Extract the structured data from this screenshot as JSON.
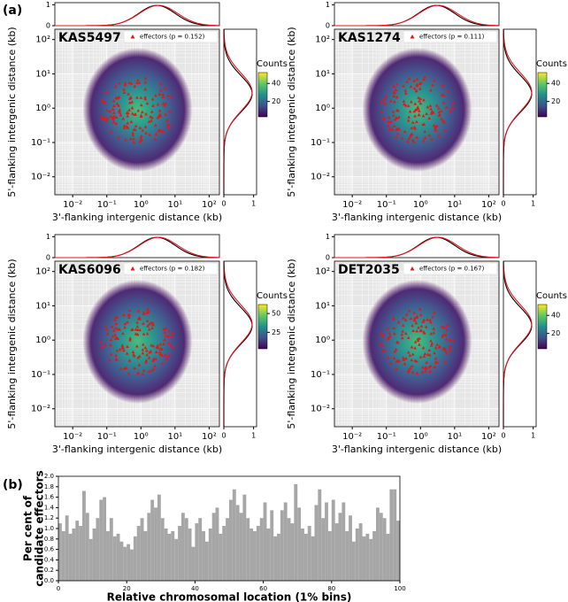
{
  "panel_labels": [
    "(a)",
    "(b)"
  ],
  "chart_data": [
    {
      "type": "hexbin",
      "title": "KAS5497",
      "legend": "effectors (p = 0.152)",
      "legend_color": "#e8141c",
      "xlabel": "3'-flanking intergenic distance (kb)",
      "ylabel": "5'-flanking intergenic distance (kb)",
      "log_scale": true,
      "grid": true,
      "xlim": [
        0.003,
        200
      ],
      "ylim": [
        0.003,
        200
      ],
      "xticks": [
        {
          "value": 0.01,
          "label": "10⁻²"
        },
        {
          "value": 0.1,
          "label": "10⁻¹"
        },
        {
          "value": 1,
          "label": "10⁰"
        },
        {
          "value": 10,
          "label": "10¹"
        },
        {
          "value": 100,
          "label": "10²"
        }
      ],
      "yticks": [
        {
          "value": 0.01,
          "label": "10⁻²"
        },
        {
          "value": 0.1,
          "label": "10⁻¹"
        },
        {
          "value": 1,
          "label": "10⁰"
        },
        {
          "value": 10,
          "label": "10¹"
        },
        {
          "value": 100,
          "label": "10²"
        }
      ],
      "marginal_lim": [
        0,
        1.1
      ],
      "marginal_ticks": [
        0,
        1
      ],
      "colorbar": {
        "label": "Counts",
        "lim": [
          3,
          52
        ],
        "ticks": [
          20,
          40
        ]
      }
    },
    {
      "type": "hexbin",
      "title": "KAS1274",
      "legend": "effectors (p = 0.111)",
      "legend_color": "#e8141c",
      "xlabel": "3'-flanking intergenic distance (kb)",
      "ylabel": "5'-flanking intergenic distance (kb)",
      "log_scale": true,
      "grid": true,
      "xlim": [
        0.003,
        200
      ],
      "ylim": [
        0.003,
        200
      ],
      "xticks": [
        {
          "value": 0.01,
          "label": "10⁻²"
        },
        {
          "value": 0.1,
          "label": "10⁻¹"
        },
        {
          "value": 1,
          "label": "10⁰"
        },
        {
          "value": 10,
          "label": "10¹"
        },
        {
          "value": 100,
          "label": "10²"
        }
      ],
      "yticks": [
        {
          "value": 0.01,
          "label": "10⁻²"
        },
        {
          "value": 0.1,
          "label": "10⁻¹"
        },
        {
          "value": 1,
          "label": "10⁰"
        },
        {
          "value": 10,
          "label": "10¹"
        },
        {
          "value": 100,
          "label": "10²"
        }
      ],
      "marginal_lim": [
        0,
        1.1
      ],
      "marginal_ticks": [
        0,
        1
      ],
      "colorbar": {
        "label": "Counts",
        "lim": [
          3,
          52
        ],
        "ticks": [
          20,
          40
        ]
      }
    },
    {
      "type": "hexbin",
      "title": "KAS6096",
      "legend": "effectors (p = 0.182)",
      "legend_color": "#e8141c",
      "xlabel": "3'-flanking intergenic distance (kb)",
      "ylabel": "5'-flanking intergenic distance (kb)",
      "log_scale": true,
      "grid": true,
      "xlim": [
        0.003,
        200
      ],
      "ylim": [
        0.003,
        200
      ],
      "xticks": [
        {
          "value": 0.01,
          "label": "10⁻²"
        },
        {
          "value": 0.1,
          "label": "10⁻¹"
        },
        {
          "value": 1,
          "label": "10⁰"
        },
        {
          "value": 10,
          "label": "10¹"
        },
        {
          "value": 100,
          "label": "10²"
        }
      ],
      "yticks": [
        {
          "value": 0.01,
          "label": "10⁻²"
        },
        {
          "value": 0.1,
          "label": "10⁻¹"
        },
        {
          "value": 1,
          "label": "10⁰"
        },
        {
          "value": 10,
          "label": "10¹"
        },
        {
          "value": 100,
          "label": "10²"
        }
      ],
      "marginal_lim": [
        0,
        1.1
      ],
      "marginal_ticks": [
        0,
        1
      ],
      "colorbar": {
        "label": "Counts",
        "lim": [
          3,
          62
        ],
        "ticks": [
          25,
          50
        ]
      }
    },
    {
      "type": "hexbin",
      "title": "DET2035",
      "legend": "effectors (p = 0.167)",
      "legend_color": "#e8141c",
      "xlabel": "3'-flanking intergenic distance (kb)",
      "ylabel": "5'-flanking intergenic distance (kb)",
      "log_scale": true,
      "grid": true,
      "xlim": [
        0.003,
        200
      ],
      "ylim": [
        0.003,
        200
      ],
      "xticks": [
        {
          "value": 0.01,
          "label": "10⁻²"
        },
        {
          "value": 0.1,
          "label": "10⁻¹"
        },
        {
          "value": 1,
          "label": "10⁰"
        },
        {
          "value": 10,
          "label": "10¹"
        },
        {
          "value": 100,
          "label": "10²"
        }
      ],
      "yticks": [
        {
          "value": 0.01,
          "label": "10⁻²"
        },
        {
          "value": 0.1,
          "label": "10⁻¹"
        },
        {
          "value": 1,
          "label": "10⁰"
        },
        {
          "value": 10,
          "label": "10¹"
        },
        {
          "value": 100,
          "label": "10²"
        }
      ],
      "marginal_lim": [
        0,
        1.1
      ],
      "marginal_ticks": [
        0,
        1
      ],
      "colorbar": {
        "label": "Counts",
        "lim": [
          3,
          52
        ],
        "ticks": [
          20,
          40
        ]
      }
    },
    {
      "type": "histogram",
      "xlabel": "Relative chromosomal location (1% bins)",
      "ylabel": [
        "Per cent of",
        "candidate effectors"
      ],
      "color": "#a6a6a6",
      "xlim": [
        0,
        100
      ],
      "xticks": [
        0,
        20,
        40,
        60,
        80,
        100
      ],
      "ylim": [
        0,
        2.0
      ],
      "yticks": [
        {
          "value": 0,
          "label": "0.0"
        },
        0.2,
        0.4,
        0.6,
        0.8,
        {
          "value": 1,
          "label": "1.0"
        },
        1.2,
        1.4,
        1.6,
        1.8,
        {
          "value": 2,
          "label": "2.0"
        }
      ],
      "bins": [
        0,
        1,
        2,
        3,
        4,
        5,
        6,
        7,
        8,
        9,
        10,
        11,
        12,
        13,
        14,
        15,
        16,
        17,
        18,
        19,
        20,
        21,
        22,
        23,
        24,
        25,
        26,
        27,
        28,
        29,
        30,
        31,
        32,
        33,
        34,
        35,
        36,
        37,
        38,
        39,
        40,
        41,
        42,
        43,
        44,
        45,
        46,
        47,
        48,
        49,
        50,
        51,
        52,
        53,
        54,
        55,
        56,
        57,
        58,
        59,
        60,
        61,
        62,
        63,
        64,
        65,
        66,
        67,
        68,
        69,
        70,
        71,
        72,
        73,
        74,
        75,
        76,
        77,
        78,
        79,
        80,
        81,
        82,
        83,
        84,
        85,
        86,
        87,
        88,
        89,
        90,
        91,
        92,
        93,
        94,
        95,
        96,
        97,
        98,
        99,
        100
      ],
      "values": [
        1.1,
        0.95,
        1.25,
        0.9,
        1.0,
        1.15,
        1.05,
        1.72,
        1.3,
        0.8,
        1.0,
        1.2,
        1.55,
        1.6,
        0.95,
        1.2,
        0.85,
        0.9,
        0.75,
        0.65,
        0.7,
        0.6,
        0.85,
        1.05,
        1.2,
        0.95,
        1.3,
        1.55,
        1.4,
        1.65,
        1.2,
        1.0,
        0.9,
        0.95,
        0.8,
        1.05,
        1.3,
        1.2,
        1.0,
        0.65,
        1.1,
        1.2,
        0.95,
        0.75,
        1.0,
        1.3,
        1.4,
        0.9,
        1.05,
        1.2,
        1.55,
        1.75,
        1.45,
        1.3,
        1.65,
        1.2,
        1.0,
        0.95,
        1.05,
        1.2,
        1.5,
        1.0,
        1.35,
        0.85,
        0.9,
        1.35,
        1.5,
        1.2,
        1.1,
        1.85,
        1.4,
        1.0,
        0.9,
        1.05,
        0.85,
        1.45,
        1.75,
        1.2,
        1.5,
        0.95,
        1.55,
        1.1,
        1.3,
        1.5,
        0.95,
        1.25,
        0.75,
        1.0,
        1.1,
        0.85,
        0.9,
        0.8,
        0.95,
        1.4,
        1.3,
        1.2,
        0.9,
        1.75,
        1.75,
        1.15
      ]
    }
  ]
}
